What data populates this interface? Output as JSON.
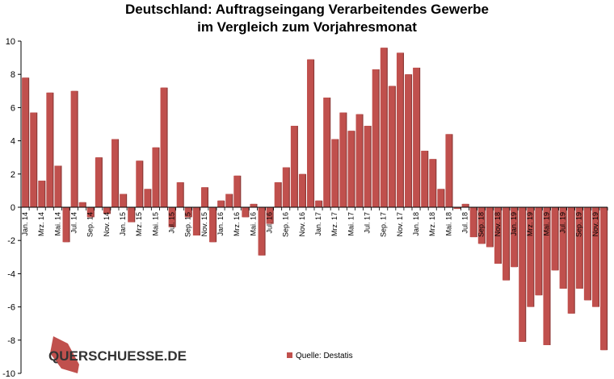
{
  "chart_data": {
    "type": "bar",
    "title_line1": "Deutschland: Auftragseingang Verarbeitendes Gewerbe",
    "title_line2": "im Vergleich zum Vorjahresmonat",
    "xlabel": "",
    "ylabel": "",
    "ylim": [
      -10,
      10
    ],
    "yticks": [
      -10,
      -8,
      -6,
      -4,
      -2,
      0,
      2,
      4,
      6,
      8,
      10
    ],
    "grid": false,
    "bar_color": "#c0504d",
    "categories": [
      "Jan. 14",
      "Feb. 14",
      "Mrz. 14",
      "Apr. 14",
      "Mai. 14",
      "Jun. 14",
      "Jul. 14",
      "Aug. 14",
      "Sep. 14",
      "Okt. 14",
      "Nov. 14",
      "Dez. 14",
      "Jan. 15",
      "Feb. 15",
      "Mrz. 15",
      "Apr. 15",
      "Mai. 15",
      "Jun. 15",
      "Jul. 15",
      "Aug. 15",
      "Sep. 15",
      "Okt. 15",
      "Nov. 15",
      "Dez. 15",
      "Jan. 16",
      "Feb. 16",
      "Mrz. 16",
      "Apr. 16",
      "Mai. 16",
      "Jun. 16",
      "Jul. 16",
      "Aug. 16",
      "Sep. 16",
      "Okt. 16",
      "Nov. 16",
      "Dez. 16",
      "Jan. 17",
      "Feb. 17",
      "Mrz. 17",
      "Apr. 17",
      "Mai. 17",
      "Jun. 17",
      "Jul. 17",
      "Aug. 17",
      "Sep. 17",
      "Okt. 17",
      "Nov. 17",
      "Dez. 17",
      "Jan. 18",
      "Feb. 18",
      "Mrz. 18",
      "Apr. 18",
      "Mai. 18",
      "Jun. 18",
      "Jul. 18",
      "Aug. 18",
      "Sep. 18",
      "Okt. 18",
      "Nov. 18",
      "Dez. 18",
      "Jan. 19",
      "Feb. 19",
      "Mrz. 19",
      "Apr. 19",
      "Mai. 19",
      "Jun. 19",
      "Jul. 19",
      "Aug. 19",
      "Sep. 19",
      "Okt. 19",
      "Nov. 19",
      "Dez. 19"
    ],
    "x_tick_labels": [
      "Jan. 14",
      "",
      "Mrz. 14",
      "",
      "Mai. 14",
      "",
      "Jul. 14",
      "",
      "Sep. 14",
      "",
      "Nov. 14",
      "",
      "Jan. 15",
      "",
      "Mrz. 15",
      "",
      "Mai. 15",
      "",
      "Jul. 15",
      "",
      "Sep. 15",
      "",
      "Nov. 15",
      "",
      "Jan. 16",
      "",
      "Mrz. 16",
      "",
      "Mai. 16",
      "",
      "Jul. 16",
      "",
      "Sep. 16",
      "",
      "Nov. 16",
      "",
      "Jan. 17",
      "",
      "Mrz. 17",
      "",
      "Mai. 17",
      "",
      "Jul. 17",
      "",
      "Sep. 17",
      "",
      "Nov. 17",
      "",
      "Jan. 18",
      "",
      "Mrz. 18",
      "",
      "Mai. 18",
      "",
      "Jul. 18",
      "",
      "Sep. 18",
      "",
      "Nov. 18",
      "",
      "Jan. 19",
      "",
      "Mrz. 19",
      "",
      "Mai. 19",
      "",
      "Jul. 19",
      "",
      "Sep. 19",
      "",
      "Nov. 19",
      ""
    ],
    "values": [
      7.8,
      5.7,
      1.6,
      6.9,
      2.5,
      -2.1,
      7.0,
      0.3,
      -0.6,
      3.0,
      -0.4,
      4.1,
      0.8,
      -0.9,
      2.8,
      1.1,
      3.6,
      7.2,
      -1.2,
      1.5,
      -0.6,
      -1.7,
      1.2,
      -2.1,
      0.4,
      0.8,
      1.9,
      -0.6,
      0.2,
      -2.9,
      -1.0,
      1.5,
      2.4,
      4.9,
      2.0,
      8.9,
      0.4,
      6.6,
      4.1,
      5.7,
      4.6,
      5.6,
      4.9,
      8.3,
      9.6,
      7.3,
      9.3,
      8.0,
      8.4,
      3.4,
      2.9,
      1.1,
      4.4,
      -0.1,
      0.2,
      -1.8,
      -2.2,
      -2.4,
      -3.4,
      -4.4,
      -3.6,
      -8.1,
      -6.0,
      -5.3,
      -8.3,
      -3.8,
      -4.9,
      -6.4,
      -4.9,
      -5.6,
      -6.0,
      -8.6
    ],
    "legend": {
      "label": "Quelle: Destatis",
      "position": "bottom-center"
    }
  },
  "brand": {
    "text": "QUERSCHUESSE.DE"
  }
}
